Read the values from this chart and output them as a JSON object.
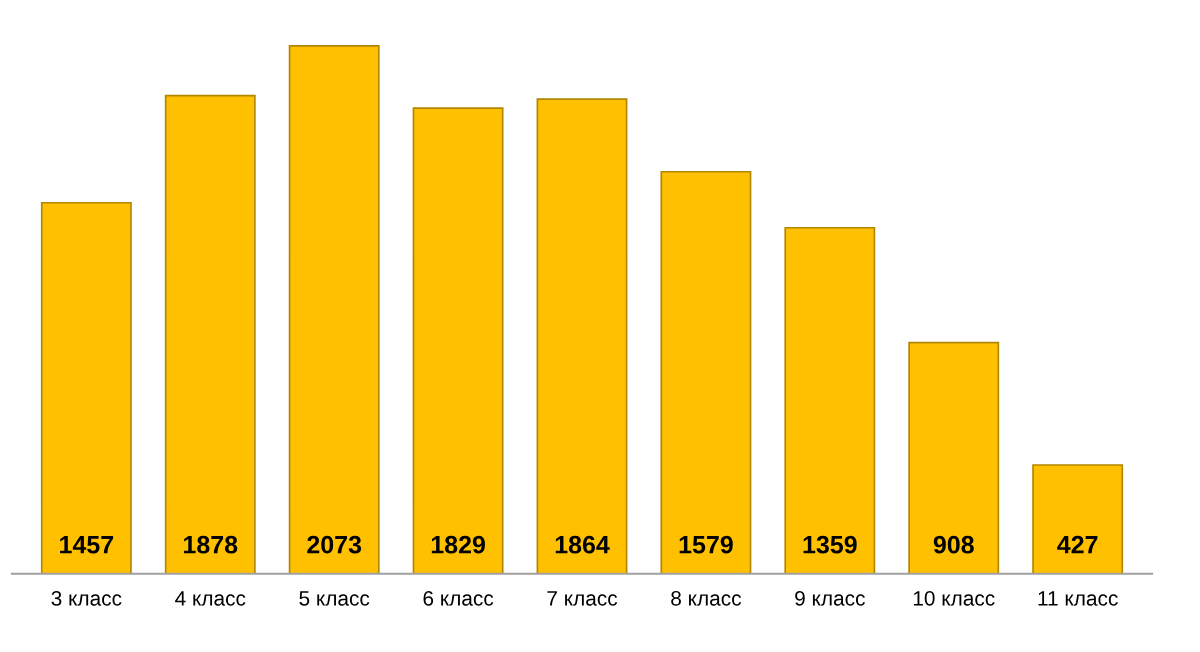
{
  "chart_data": {
    "type": "bar",
    "categories": [
      "3 класс",
      "4 класс",
      "5 класс",
      "6 класс",
      "7 класс",
      "8 класс",
      "9 класс",
      "10 класс",
      "11 класс"
    ],
    "values": [
      1457,
      1878,
      2073,
      1829,
      1864,
      1579,
      1359,
      908,
      427
    ],
    "color": "#ffc000",
    "data_labels": true
  }
}
